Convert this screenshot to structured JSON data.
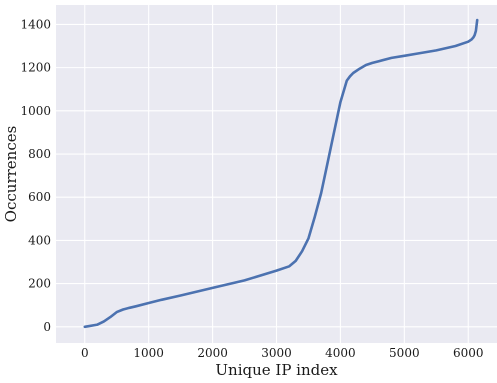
{
  "chart_data": {
    "type": "line",
    "title": "",
    "xlabel": "Unique IP index",
    "ylabel": "Occurrences",
    "xlim": [
      -450,
      6450
    ],
    "ylim": [
      -75,
      1490
    ],
    "xticks": [
      0,
      1000,
      2000,
      3000,
      4000,
      5000,
      6000
    ],
    "yticks": [
      0,
      200,
      400,
      600,
      800,
      1000,
      1200,
      1400
    ],
    "grid": true,
    "legend": "none",
    "colors": {
      "background": "#eaeaf2",
      "grid": "#ffffff",
      "line": "#4c72b0"
    },
    "series": [
      {
        "x": [
          0,
          200,
          300,
          400,
          500,
          600,
          700,
          800,
          1000,
          1200,
          1500,
          2000,
          2500,
          3000,
          3200,
          3300,
          3400,
          3500,
          3600,
          3700,
          3800,
          3900,
          4000,
          4100,
          4150,
          4200,
          4300,
          4400,
          4500,
          4600,
          4800,
          5000,
          5200,
          5500,
          5800,
          6000,
          6050,
          6080,
          6100,
          6120,
          6140
        ],
        "y": [
          0,
          10,
          25,
          45,
          68,
          80,
          88,
          95,
          110,
          125,
          145,
          180,
          215,
          260,
          280,
          305,
          350,
          410,
          510,
          620,
          760,
          900,
          1040,
          1140,
          1160,
          1175,
          1195,
          1212,
          1222,
          1230,
          1245,
          1255,
          1265,
          1280,
          1300,
          1320,
          1330,
          1340,
          1350,
          1370,
          1420
        ]
      }
    ]
  }
}
